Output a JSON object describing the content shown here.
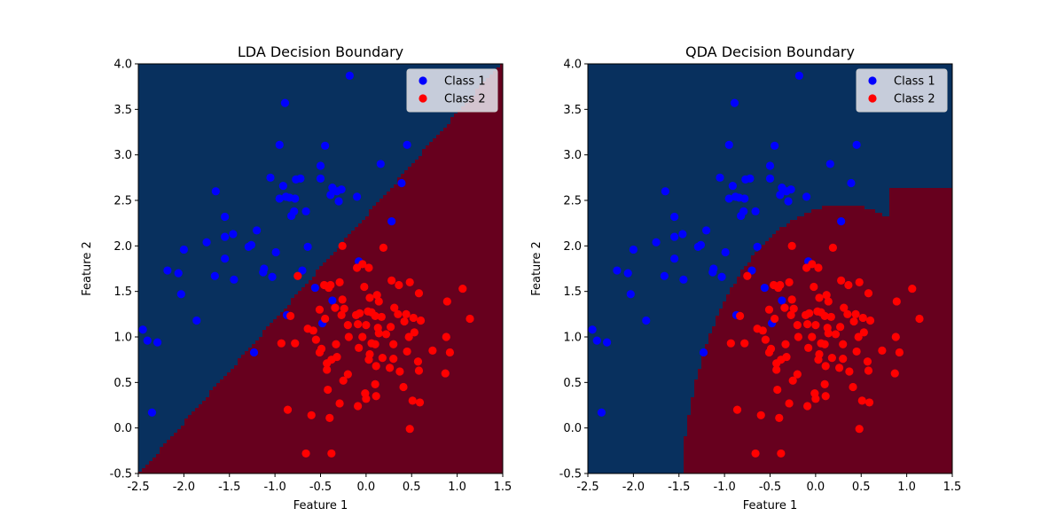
{
  "colors": {
    "class1_region": "#08305e",
    "class2_region": "#67001e",
    "class1_point": "#0000ff",
    "class2_point": "#ff0000",
    "legend_bg": "#e8e8f0"
  },
  "chart_data": [
    {
      "type": "scatter",
      "title": "LDA Decision Boundary",
      "xlabel": "Feature 1",
      "ylabel": "Feature 2",
      "xlim": [
        -2.5,
        1.5
      ],
      "ylim": [
        -0.5,
        4.0
      ],
      "xticks": [
        "-2.5",
        "-2.0",
        "-1.5",
        "-1.0",
        "-0.5",
        "0.0",
        "0.5",
        "1.0",
        "1.5"
      ],
      "yticks": [
        "-0.5",
        "0.0",
        "0.5",
        "1.0",
        "1.5",
        "2.0",
        "2.5",
        "3.0",
        "3.5",
        "4.0"
      ],
      "legend_position": "top-right",
      "boundary": "linear",
      "legend": [
        "Class 1",
        "Class 2"
      ]
    },
    {
      "type": "scatter",
      "title": "QDA Decision Boundary",
      "xlabel": "Feature 1",
      "ylabel": "Feature 2",
      "xlim": [
        -2.5,
        1.5
      ],
      "ylim": [
        -0.5,
        4.0
      ],
      "xticks": [
        "-2.5",
        "-2.0",
        "-1.5",
        "-1.0",
        "-0.5",
        "0.0",
        "0.5",
        "1.0",
        "1.5"
      ],
      "yticks": [
        "-0.5",
        "0.0",
        "0.5",
        "1.0",
        "1.5",
        "2.0",
        "2.5",
        "3.0",
        "3.5",
        "4.0"
      ],
      "legend_position": "top-right",
      "boundary": "quadratic",
      "legend": [
        "Class 1",
        "Class 2"
      ]
    }
  ],
  "series": [
    {
      "name": "Class 1",
      "points": [
        [
          -0.18,
          3.87
        ],
        [
          -0.89,
          3.57
        ],
        [
          -0.95,
          3.11
        ],
        [
          -0.45,
          3.1
        ],
        [
          0.45,
          3.11
        ],
        [
          -0.5,
          2.88
        ],
        [
          0.16,
          2.9
        ],
        [
          -1.05,
          2.75
        ],
        [
          -0.5,
          2.74
        ],
        [
          -0.72,
          2.74
        ],
        [
          -0.77,
          2.73
        ],
        [
          -0.91,
          2.66
        ],
        [
          0.39,
          2.69
        ],
        [
          -1.65,
          2.6
        ],
        [
          -0.37,
          2.64
        ],
        [
          -0.27,
          2.62
        ],
        [
          -0.32,
          2.6
        ],
        [
          -0.39,
          2.56
        ],
        [
          -0.1,
          2.54
        ],
        [
          -0.88,
          2.54
        ],
        [
          -0.84,
          2.53
        ],
        [
          -0.95,
          2.52
        ],
        [
          -0.78,
          2.52
        ],
        [
          -0.3,
          2.49
        ],
        [
          -0.66,
          2.38
        ],
        [
          -0.79,
          2.38
        ],
        [
          -0.82,
          2.33
        ],
        [
          -1.55,
          2.32
        ],
        [
          0.28,
          2.27
        ],
        [
          -1.2,
          2.17
        ],
        [
          -1.46,
          2.13
        ],
        [
          -1.55,
          2.1
        ],
        [
          -1.75,
          2.04
        ],
        [
          -1.26,
          2.01
        ],
        [
          -1.29,
          1.99
        ],
        [
          -0.64,
          1.99
        ],
        [
          -2.0,
          1.96
        ],
        [
          -0.99,
          1.93
        ],
        [
          -1.55,
          1.86
        ],
        [
          -0.08,
          1.83
        ],
        [
          -1.12,
          1.75
        ],
        [
          -2.18,
          1.73
        ],
        [
          -0.7,
          1.73
        ],
        [
          -1.13,
          1.71
        ],
        [
          -2.06,
          1.7
        ],
        [
          -1.66,
          1.67
        ],
        [
          -1.03,
          1.66
        ],
        [
          -1.45,
          1.63
        ],
        [
          -0.56,
          1.54
        ],
        [
          -0.37,
          1.4
        ],
        [
          -2.03,
          1.47
        ],
        [
          -0.87,
          1.24
        ],
        [
          -1.86,
          1.18
        ],
        [
          -2.45,
          1.08
        ],
        [
          -0.48,
          1.15
        ],
        [
          -2.4,
          0.96
        ],
        [
          -2.29,
          0.94
        ],
        [
          -1.23,
          0.83
        ],
        [
          -2.35,
          0.17
        ]
      ]
    },
    {
      "name": "Class 2",
      "points": [
        [
          -0.26,
          2.0
        ],
        [
          0.19,
          1.98
        ],
        [
          -0.04,
          1.8
        ],
        [
          -0.1,
          1.76
        ],
        [
          0.03,
          1.76
        ],
        [
          -0.75,
          1.67
        ],
        [
          -0.29,
          1.6
        ],
        [
          0.28,
          1.62
        ],
        [
          0.48,
          1.6
        ],
        [
          0.36,
          1.57
        ],
        [
          -0.46,
          1.57
        ],
        [
          -0.39,
          1.57
        ],
        [
          -0.02,
          1.55
        ],
        [
          -0.41,
          1.54
        ],
        [
          1.06,
          1.53
        ],
        [
          0.58,
          1.48
        ],
        [
          0.12,
          1.46
        ],
        [
          0.04,
          1.43
        ],
        [
          -0.26,
          1.41
        ],
        [
          0.14,
          1.39
        ],
        [
          0.89,
          1.39
        ],
        [
          -0.34,
          1.32
        ],
        [
          -0.51,
          1.3
        ],
        [
          0.31,
          1.32
        ],
        [
          -0.24,
          1.31
        ],
        [
          0.02,
          1.28
        ],
        [
          0.06,
          1.27
        ],
        [
          -0.07,
          1.26
        ],
        [
          0.35,
          1.25
        ],
        [
          0.44,
          1.25
        ],
        [
          0.1,
          1.23
        ],
        [
          -0.11,
          1.24
        ],
        [
          -0.27,
          1.24
        ],
        [
          -0.83,
          1.23
        ],
        [
          0.17,
          1.22
        ],
        [
          0.52,
          1.21
        ],
        [
          1.14,
          1.2
        ],
        [
          -0.45,
          1.2
        ],
        [
          0.6,
          1.18
        ],
        [
          0.42,
          1.17
        ],
        [
          0.27,
          1.11
        ],
        [
          -0.2,
          1.13
        ],
        [
          -0.09,
          1.14
        ],
        [
          0.0,
          1.13
        ],
        [
          0.13,
          1.1
        ],
        [
          -0.64,
          1.09
        ],
        [
          -0.58,
          1.07
        ],
        [
          0.53,
          1.05
        ],
        [
          0.14,
          1.04
        ],
        [
          0.22,
          1.03
        ],
        [
          0.47,
          1.0
        ],
        [
          -0.19,
          1.0
        ],
        [
          -0.04,
          1.0
        ],
        [
          0.88,
          1.0
        ],
        [
          -0.55,
          0.97
        ],
        [
          -0.93,
          0.93
        ],
        [
          -0.78,
          0.93
        ],
        [
          0.06,
          0.93
        ],
        [
          0.1,
          0.92
        ],
        [
          0.3,
          0.92
        ],
        [
          -0.33,
          0.92
        ],
        [
          -0.08,
          0.88
        ],
        [
          -0.49,
          0.87
        ],
        [
          0.73,
          0.85
        ],
        [
          0.45,
          0.84
        ],
        [
          -0.51,
          0.83
        ],
        [
          0.92,
          0.83
        ],
        [
          0.04,
          0.81
        ],
        [
          -0.32,
          0.78
        ],
        [
          0.18,
          0.77
        ],
        [
          0.3,
          0.76
        ],
        [
          -0.38,
          0.75
        ],
        [
          0.03,
          0.75
        ],
        [
          0.57,
          0.73
        ],
        [
          -0.43,
          0.71
        ],
        [
          0.11,
          0.68
        ],
        [
          0.26,
          0.66
        ],
        [
          0.37,
          0.62
        ],
        [
          0.58,
          0.63
        ],
        [
          -0.43,
          0.64
        ],
        [
          -0.2,
          0.59
        ],
        [
          0.87,
          0.6
        ],
        [
          -0.25,
          0.52
        ],
        [
          0.1,
          0.48
        ],
        [
          0.41,
          0.45
        ],
        [
          -0.42,
          0.42
        ],
        [
          -0.01,
          0.38
        ],
        [
          0.11,
          0.35
        ],
        [
          0.0,
          0.32
        ],
        [
          0.51,
          0.3
        ],
        [
          0.59,
          0.28
        ],
        [
          -0.09,
          0.24
        ],
        [
          -0.29,
          0.27
        ],
        [
          -0.86,
          0.2
        ],
        [
          -0.4,
          0.11
        ],
        [
          -0.6,
          0.14
        ],
        [
          0.48,
          -0.01
        ],
        [
          -0.66,
          -0.28
        ],
        [
          -0.38,
          -0.28
        ]
      ]
    }
  ]
}
